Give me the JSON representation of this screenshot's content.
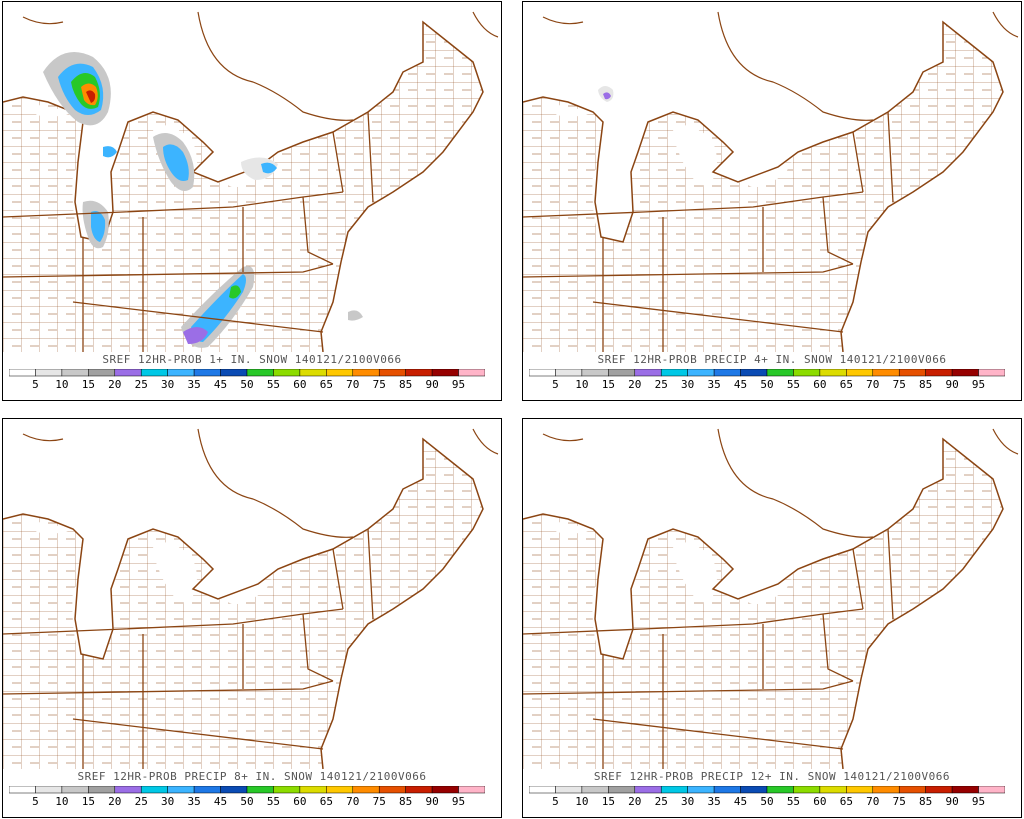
{
  "panels": [
    {
      "id": "p1",
      "title": "SREF 12HR-PROB 1+ IN. SNOW 140121/2100V066"
    },
    {
      "id": "p2",
      "title": "SREF 12HR-PROB PRECIP 4+ IN. SNOW 140121/2100V066"
    },
    {
      "id": "p3",
      "title": "SREF 12HR-PROB PRECIP 8+ IN. SNOW 140121/2100V066"
    },
    {
      "id": "p4",
      "title": "SREF 12HR-PROB PRECIP 12+ IN. SNOW 140121/2100V066"
    }
  ],
  "colorbar": {
    "labels": [
      "5",
      "10",
      "15",
      "20",
      "25",
      "30",
      "35",
      "45",
      "50",
      "55",
      "60",
      "65",
      "70",
      "75",
      "85",
      "90",
      "95"
    ],
    "colors": [
      "#ffffff",
      "#e6e6e6",
      "#c8c8c8",
      "#a0a0a0",
      "#9b6ee6",
      "#00c8e6",
      "#3cb4ff",
      "#1e78e6",
      "#0a4bb4",
      "#28c828",
      "#8cdc00",
      "#dcdc00",
      "#ffc800",
      "#ff8c00",
      "#e65000",
      "#c81e00",
      "#960000",
      "#ffb4c8"
    ]
  },
  "colors": {
    "border": "#8b4513"
  }
}
